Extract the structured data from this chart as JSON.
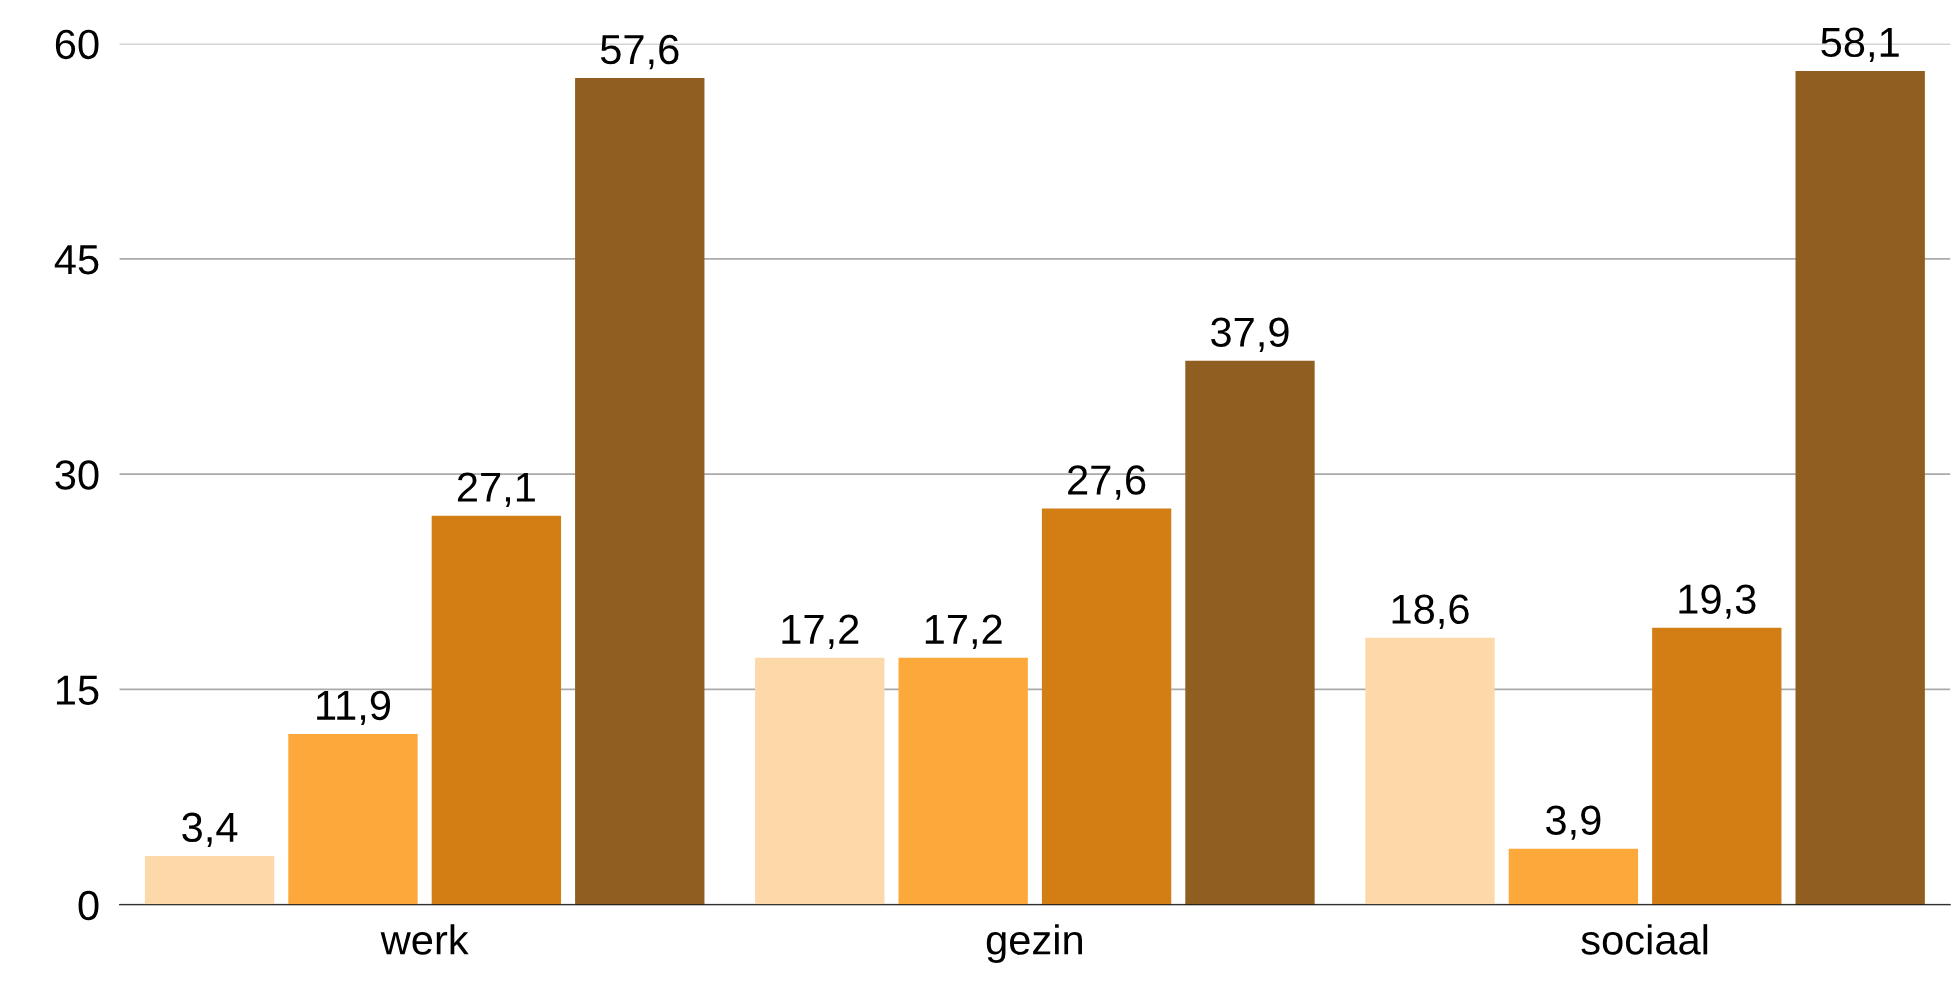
{
  "chart_data": {
    "type": "bar",
    "categories": [
      "werk",
      "gezin",
      "sociaal"
    ],
    "series": [
      {
        "color": "#fdd9a9",
        "values": [
          3.4,
          17.2,
          18.6
        ],
        "value_labels": [
          "3,4",
          "17,2",
          "18,6"
        ]
      },
      {
        "color": "#fda83a",
        "values": [
          11.9,
          17.2,
          3.9
        ],
        "value_labels": [
          "11,9",
          "17,2",
          "3,9"
        ]
      },
      {
        "color": "#d27e15",
        "values": [
          27.1,
          27.6,
          19.3
        ],
        "value_labels": [
          "27,1",
          "27,6",
          "19,3"
        ]
      },
      {
        "color": "#8f5e20",
        "values": [
          57.6,
          37.9,
          58.1
        ],
        "value_labels": [
          "57,6",
          "37,9",
          "58,1"
        ]
      }
    ],
    "ylim": [
      0,
      60
    ],
    "yticks": [
      0,
      15,
      30,
      45,
      60
    ],
    "grid": "y"
  }
}
